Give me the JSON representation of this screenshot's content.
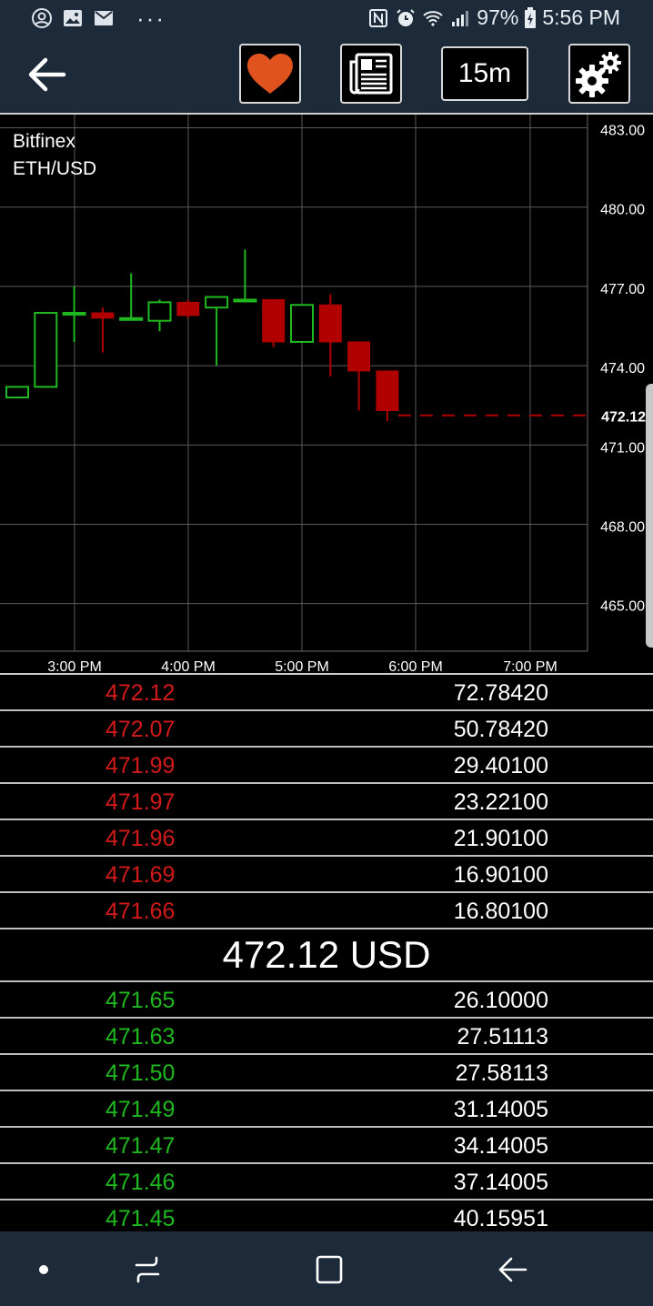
{
  "status_bar": {
    "left_icons": [
      "account-circle-icon",
      "gallery-icon",
      "gmail-icon"
    ],
    "more": "···",
    "battery": "97%",
    "time": "5:56 PM"
  },
  "toolbar": {
    "timeframe": "15m",
    "icons": [
      "back-arrow-icon",
      "heart-icon",
      "newspaper-icon",
      "gears-icon"
    ]
  },
  "chart": {
    "exchange": "Bitfinex",
    "pair": "ETH/USD",
    "last_price_label": "472.12",
    "y_ticks": [
      "483.00",
      "480.00",
      "477.00",
      "474.00",
      "471.00",
      "468.00",
      "465.00"
    ],
    "x_ticks": [
      "3:00 PM",
      "4:00 PM",
      "5:00 PM",
      "6:00 PM",
      "7:00 PM"
    ]
  },
  "chart_data": {
    "type": "candlestick",
    "exchange": "Bitfinex",
    "pair": "ETH/USD",
    "ylim": [
      463.2,
      483.5
    ],
    "y_ticks": [
      483,
      480,
      477,
      474,
      471,
      468,
      465
    ],
    "x_tick_labels": [
      "3:00 PM",
      "4:00 PM",
      "5:00 PM",
      "6:00 PM",
      "7:00 PM"
    ],
    "last_price": 472.12,
    "candles": [
      {
        "time": "2:30 PM",
        "open": 472.8,
        "high": 473.2,
        "low": 472.8,
        "close": 473.2
      },
      {
        "time": "2:45 PM",
        "open": 473.2,
        "high": 476.0,
        "low": 473.2,
        "close": 476.0
      },
      {
        "time": "3:00 PM",
        "open": 476.0,
        "high": 477.0,
        "low": 474.9,
        "close": 476.0
      },
      {
        "time": "3:15 PM",
        "open": 476.0,
        "high": 476.2,
        "low": 474.5,
        "close": 475.8
      },
      {
        "time": "3:30 PM",
        "open": 475.8,
        "high": 477.5,
        "low": 475.8,
        "close": 475.8
      },
      {
        "time": "3:45 PM",
        "open": 475.7,
        "high": 476.5,
        "low": 475.3,
        "close": 476.4
      },
      {
        "time": "4:00 PM",
        "open": 476.4,
        "high": 476.5,
        "low": 475.8,
        "close": 475.9
      },
      {
        "time": "4:15 PM",
        "open": 476.2,
        "high": 476.6,
        "low": 474.0,
        "close": 476.6
      },
      {
        "time": "4:30 PM",
        "open": 476.5,
        "high": 478.4,
        "low": 476.4,
        "close": 476.5
      },
      {
        "time": "4:45 PM",
        "open": 476.5,
        "high": 476.5,
        "low": 474.7,
        "close": 474.9
      },
      {
        "time": "5:00 PM",
        "open": 474.9,
        "high": 476.3,
        "low": 474.9,
        "close": 476.3
      },
      {
        "time": "5:15 PM",
        "open": 476.3,
        "high": 476.7,
        "low": 473.6,
        "close": 474.9
      },
      {
        "time": "5:30 PM",
        "open": 474.9,
        "high": 474.9,
        "low": 472.3,
        "close": 473.8
      },
      {
        "time": "5:45 PM",
        "open": 473.8,
        "high": 473.8,
        "low": 471.9,
        "close": 472.3
      }
    ]
  },
  "order_book": {
    "asks": [
      {
        "price": "472.12",
        "amount": "72.78420"
      },
      {
        "price": "472.07",
        "amount": "50.78420"
      },
      {
        "price": "471.99",
        "amount": "29.40100"
      },
      {
        "price": "471.97",
        "amount": "23.22100"
      },
      {
        "price": "471.96",
        "amount": "21.90100"
      },
      {
        "price": "471.69",
        "amount": "16.90100"
      },
      {
        "price": "471.66",
        "amount": "16.80100"
      }
    ],
    "last_price": "472.12 USD",
    "bids": [
      {
        "price": "471.65",
        "amount": "26.10000"
      },
      {
        "price": "471.63",
        "amount": "27.51113"
      },
      {
        "price": "471.50",
        "amount": "27.58113"
      },
      {
        "price": "471.49",
        "amount": "31.14005"
      },
      {
        "price": "471.47",
        "amount": "34.14005"
      },
      {
        "price": "471.46",
        "amount": "37.14005"
      },
      {
        "price": "471.45",
        "amount": "40.15951"
      }
    ]
  },
  "colors": {
    "up": "#1fb81f",
    "down": "#b00000",
    "ask_text": "#d31a1a",
    "bid_text": "#1fb81f",
    "bar_bg": "#1c2a39",
    "heart": "#e0521e"
  },
  "nav_bar": {
    "icons": [
      "dot-icon",
      "recent-apps-icon",
      "home-icon",
      "back-icon"
    ]
  }
}
